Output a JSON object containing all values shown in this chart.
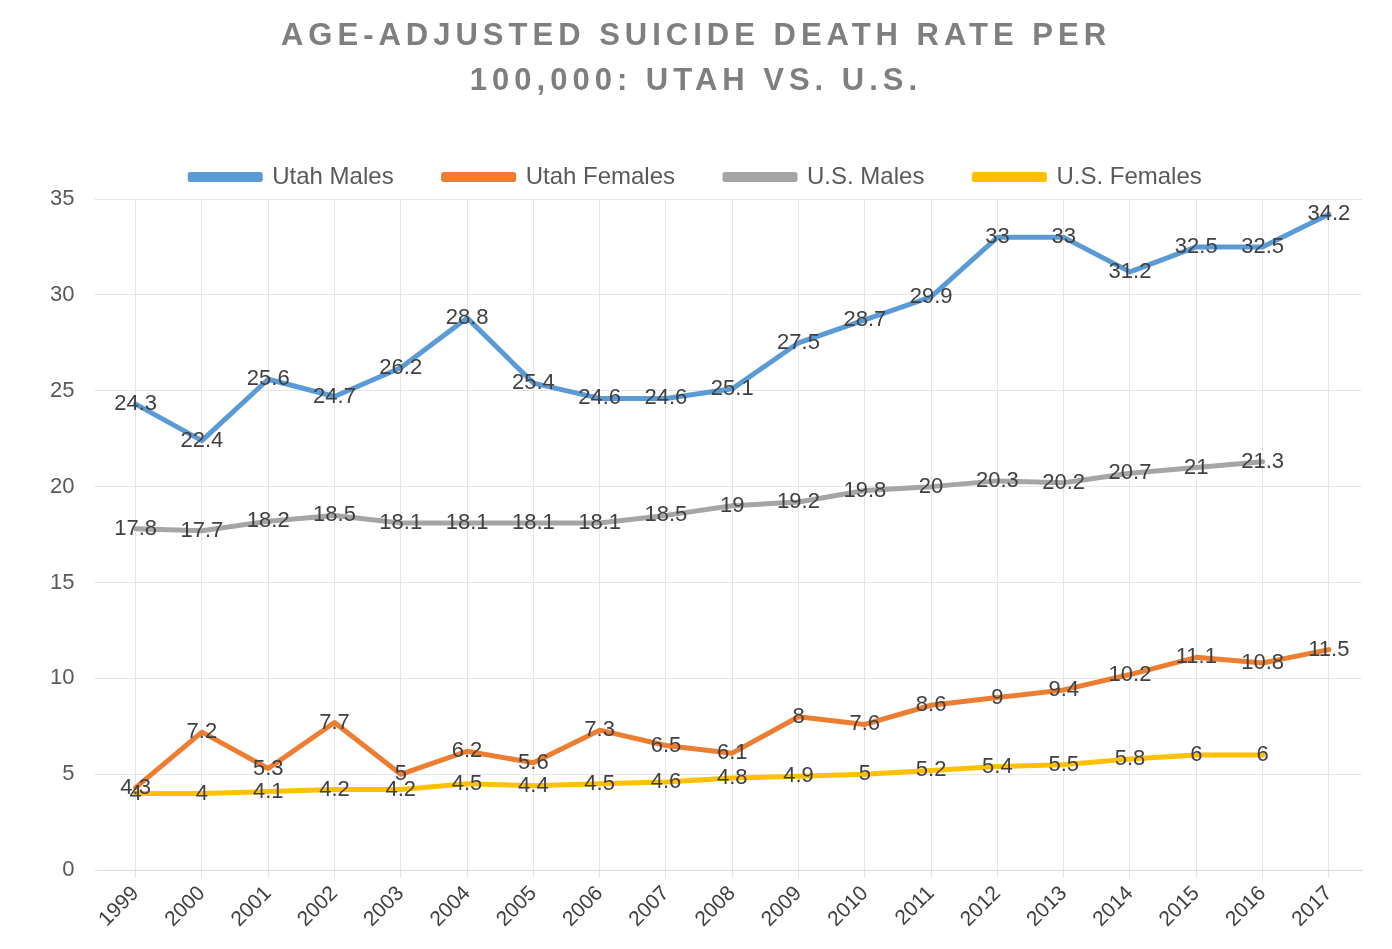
{
  "chart_data": {
    "type": "line",
    "title": "AGE-ADJUSTED SUICIDE DEATH RATE PER 100,000: UTAH VS. U.S.",
    "categories": [
      "1999",
      "2000",
      "2001",
      "2002",
      "2003",
      "2004",
      "2005",
      "2006",
      "2007",
      "2008",
      "2009",
      "2010",
      "2011",
      "2012",
      "2013",
      "2014",
      "2015",
      "2016",
      "2017"
    ],
    "series": [
      {
        "name": "Utah Males",
        "color": "#5b9bd5",
        "values": [
          24.3,
          22.4,
          25.6,
          24.7,
          26.2,
          28.8,
          25.4,
          24.6,
          24.6,
          25.1,
          27.5,
          28.7,
          29.9,
          33,
          33,
          31.2,
          32.5,
          32.5,
          34.2
        ]
      },
      {
        "name": "Utah Females",
        "color": "#ed7d31",
        "values": [
          4.3,
          7.2,
          5.3,
          7.7,
          5,
          6.2,
          5.6,
          7.3,
          6.5,
          6.1,
          8,
          7.6,
          8.6,
          9,
          9.4,
          10.2,
          11.1,
          10.8,
          11.5
        ]
      },
      {
        "name": "U.S. Males",
        "color": "#a5a5a5",
        "values": [
          17.8,
          17.7,
          18.2,
          18.5,
          18.1,
          18.1,
          18.1,
          18.1,
          18.5,
          19,
          19.2,
          19.8,
          20,
          20.3,
          20.2,
          20.7,
          21,
          21.3,
          null
        ]
      },
      {
        "name": "U.S. Females",
        "color": "#ffc000",
        "values": [
          4,
          4,
          4.1,
          4.2,
          4.2,
          4.5,
          4.4,
          4.5,
          4.6,
          4.8,
          4.9,
          5,
          5.2,
          5.4,
          5.5,
          5.8,
          6,
          6,
          null
        ]
      }
    ],
    "ylim": [
      0,
      35
    ],
    "yticks": [
      0,
      5,
      10,
      15,
      20,
      25,
      30,
      35
    ],
    "grid": true,
    "legend": "top",
    "data_labels": true,
    "marker": "none",
    "line_style": "solid"
  }
}
